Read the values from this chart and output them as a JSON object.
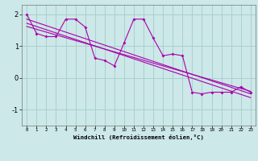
{
  "xlabel": "Windchill (Refroidissement éolien,°C)",
  "bg_color": "#cce8e8",
  "grid_color": "#aacfcf",
  "line_color": "#aa00aa",
  "ylim": [
    -1.5,
    2.3
  ],
  "xlim": [
    -0.5,
    23.5
  ],
  "yticks": [
    -1,
    0,
    1,
    2
  ],
  "xticks": [
    0,
    1,
    2,
    3,
    4,
    5,
    6,
    7,
    8,
    9,
    10,
    11,
    12,
    13,
    14,
    15,
    16,
    17,
    18,
    19,
    20,
    21,
    22,
    23
  ],
  "series1_x": [
    0,
    1,
    2,
    3,
    4,
    5,
    6,
    7,
    8,
    9,
    10,
    11,
    12,
    13,
    14,
    15,
    16,
    17,
    18,
    19,
    20,
    21,
    22,
    23
  ],
  "series1_y": [
    2.0,
    1.4,
    1.3,
    1.3,
    1.85,
    1.85,
    1.6,
    0.62,
    0.55,
    0.38,
    1.1,
    1.85,
    1.85,
    1.25,
    0.7,
    0.75,
    0.7,
    -0.45,
    -0.5,
    -0.45,
    -0.45,
    -0.45,
    -0.28,
    -0.45
  ],
  "series2_y": [
    1.85,
    -0.5
  ],
  "series3_y": [
    1.72,
    -0.62
  ],
  "series4_y": [
    1.62,
    -0.42
  ]
}
